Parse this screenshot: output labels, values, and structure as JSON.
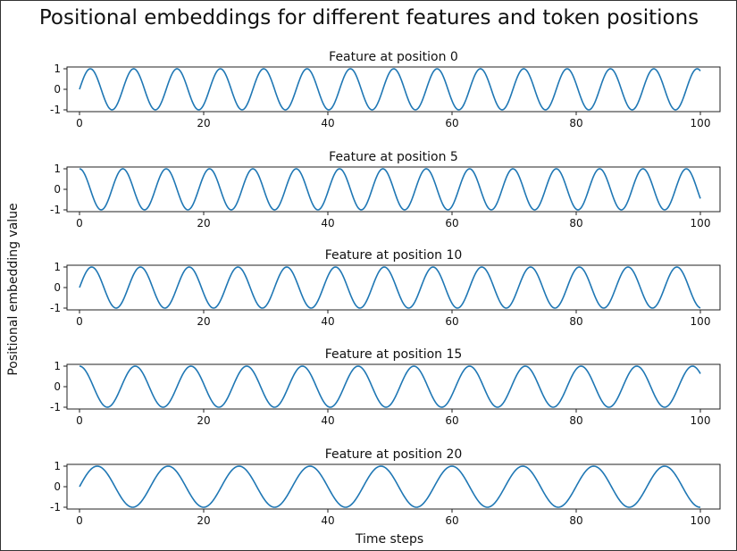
{
  "chart_data": {
    "type": "line",
    "title": "Positional embeddings for different features and token positions",
    "xlabel": "Time steps",
    "ylabel": "Positional embedding value",
    "line_color": "#1f77b4",
    "xlim": [
      0,
      100
    ],
    "ylim": [
      -1,
      1
    ],
    "x_ticks": [
      0,
      20,
      40,
      60,
      80,
      100
    ],
    "y_ticks": [
      1,
      0,
      -1
    ],
    "y_tick_labels": [
      "1",
      "0",
      "-1"
    ],
    "subplots": [
      {
        "title": "Feature at position 0",
        "function": "sin",
        "angular_frequency": 0.9,
        "phase": 0
      },
      {
        "title": "Feature at position 5",
        "function": "cos",
        "angular_frequency": 0.9,
        "phase": 0
      },
      {
        "title": "Feature at position 10",
        "function": "sin",
        "angular_frequency": 0.8,
        "phase": 0
      },
      {
        "title": "Feature at position 15",
        "function": "cos",
        "angular_frequency": 0.7,
        "phase": 0
      },
      {
        "title": "Feature at position 20",
        "function": "sin",
        "angular_frequency": 0.55,
        "phase": 0
      }
    ]
  }
}
